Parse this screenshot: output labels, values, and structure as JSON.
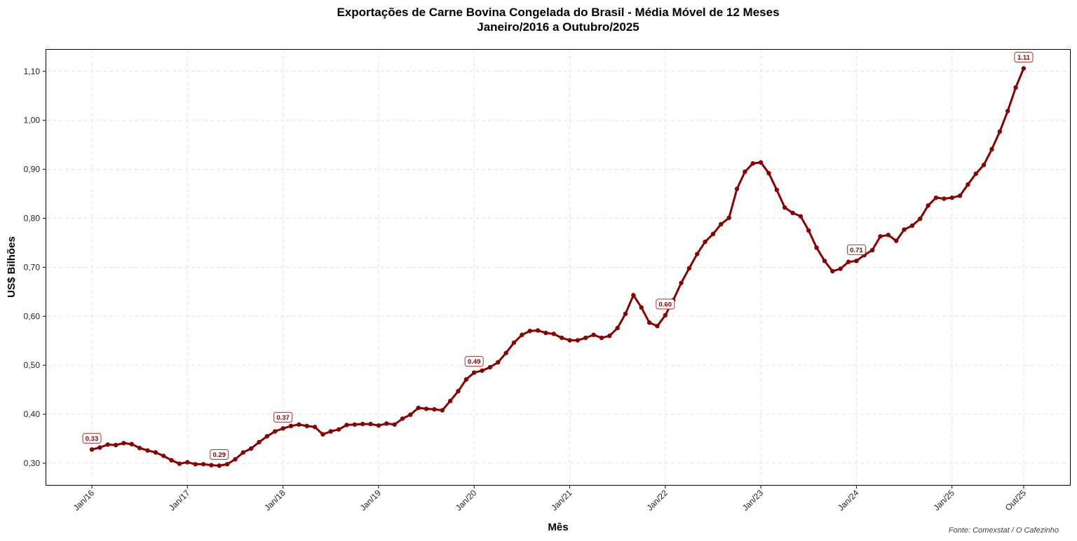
{
  "chart_data": {
    "type": "line",
    "title": "Exportações de Carne Bovina Congelada do Brasil - Média Móvel de 12 Meses",
    "subtitle": "Janeiro/2016 a Outubro/2025",
    "xlabel": "Mês",
    "ylabel": "US$ Bilhões",
    "source": "Fonte: Comexstat / O Cafezinho",
    "ylim": [
      0.255,
      1.147
    ],
    "yticks": [
      "0,30",
      "0,40",
      "0,50",
      "0,60",
      "0,70",
      "0,80",
      "0,90",
      "1,00",
      "1,10"
    ],
    "ytick_values": [
      0.3,
      0.4,
      0.5,
      0.6,
      0.7,
      0.8,
      0.9,
      1.0,
      1.1
    ],
    "xticks": [
      "Jan/16",
      "Jan/17",
      "Jan/18",
      "Jan/19",
      "Jan/20",
      "Jan/21",
      "Jan/22",
      "Jan/23",
      "Jan/24",
      "Jan/25",
      "Out/25"
    ],
    "xtick_index": [
      0,
      12,
      24,
      36,
      48,
      60,
      72,
      84,
      96,
      108,
      117
    ],
    "grid": true,
    "line_color": "#8b0000",
    "series": [
      {
        "name": "Média Móvel 12 Meses",
        "start": "Jan/16",
        "end": "Out/25",
        "values": [
          0.328,
          0.332,
          0.338,
          0.337,
          0.341,
          0.339,
          0.331,
          0.326,
          0.322,
          0.315,
          0.306,
          0.299,
          0.302,
          0.298,
          0.298,
          0.296,
          0.295,
          0.298,
          0.308,
          0.322,
          0.33,
          0.343,
          0.355,
          0.365,
          0.371,
          0.376,
          0.379,
          0.376,
          0.374,
          0.359,
          0.365,
          0.369,
          0.378,
          0.379,
          0.38,
          0.38,
          0.377,
          0.381,
          0.379,
          0.391,
          0.399,
          0.413,
          0.411,
          0.41,
          0.408,
          0.427,
          0.447,
          0.471,
          0.485,
          0.489,
          0.496,
          0.506,
          0.525,
          0.546,
          0.562,
          0.57,
          0.571,
          0.566,
          0.564,
          0.556,
          0.551,
          0.551,
          0.556,
          0.562,
          0.556,
          0.56,
          0.576,
          0.605,
          0.643,
          0.618,
          0.587,
          0.58,
          0.602,
          0.633,
          0.668,
          0.698,
          0.727,
          0.752,
          0.768,
          0.788,
          0.801,
          0.86,
          0.895,
          0.912,
          0.914,
          0.892,
          0.858,
          0.822,
          0.811,
          0.804,
          0.775,
          0.74,
          0.713,
          0.692,
          0.697,
          0.711,
          0.713,
          0.725,
          0.735,
          0.763,
          0.766,
          0.754,
          0.777,
          0.785,
          0.799,
          0.826,
          0.842,
          0.84,
          0.842,
          0.846,
          0.869,
          0.891,
          0.909,
          0.941,
          0.977,
          1.019,
          1.067,
          1.106
        ]
      }
    ],
    "annotations": [
      {
        "index": 0,
        "label": "0.33"
      },
      {
        "index": 16,
        "label": "0.29"
      },
      {
        "index": 24,
        "label": "0.37"
      },
      {
        "index": 48,
        "label": "0.49"
      },
      {
        "index": 72,
        "label": "0.60"
      },
      {
        "index": 96,
        "label": "0.71"
      },
      {
        "index": 117,
        "label": "1.11"
      }
    ]
  }
}
